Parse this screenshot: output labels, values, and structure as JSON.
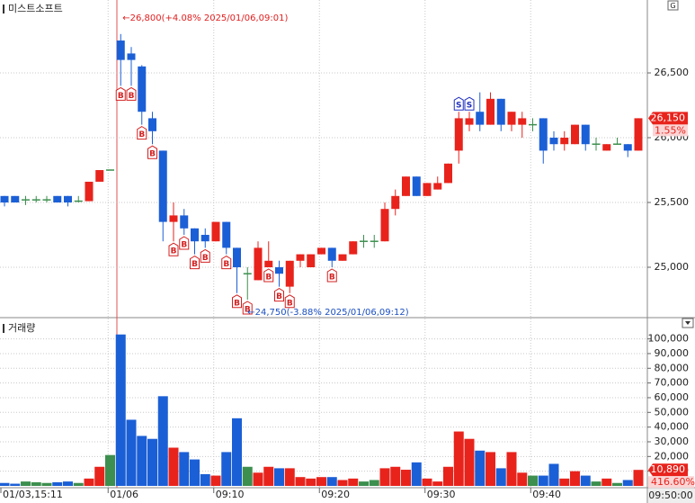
{
  "chart_data": {
    "type": "candlestick",
    "title": "미스트소프트",
    "volume_title": "거래량",
    "corner_button": "G",
    "up_color": "#e8231c",
    "down_color": "#1b5fd6",
    "flat_color": "#3c8f4e",
    "open": [
      25550,
      25550,
      25520,
      25520,
      25520,
      25550,
      25550,
      25510,
      25510,
      25660,
      25750,
      26750,
      26650,
      26550,
      26150,
      25900,
      25350,
      25400,
      25300,
      25250,
      25200,
      25350,
      25150,
      24950,
      24900,
      25000,
      25000,
      24850,
      25050,
      25000,
      25100,
      25150,
      25050,
      25100,
      25200,
      25200,
      25200,
      25450,
      25550,
      25700,
      25550,
      25600,
      25650,
      25900,
      26100,
      26200,
      26100,
      26300,
      26100,
      26100,
      26100,
      26150,
      26000,
      25950,
      25950,
      26100,
      25950,
      25900,
      25950,
      25950,
      25900
    ],
    "high": [
      25550,
      25550,
      25550,
      25550,
      25550,
      25550,
      25550,
      25550,
      25660,
      25750,
      25750,
      26800,
      26700,
      26560,
      26200,
      25900,
      25500,
      25450,
      25300,
      25300,
      25350,
      25350,
      25150,
      25000,
      25200,
      25200,
      25050,
      25050,
      25100,
      25100,
      25150,
      25150,
      25100,
      25200,
      25250,
      25250,
      25500,
      25600,
      25700,
      25700,
      25650,
      25700,
      25800,
      26200,
      26200,
      26350,
      26350,
      26300,
      26200,
      26200,
      26150,
      26150,
      26050,
      26050,
      26100,
      26100,
      26000,
      25950,
      26000,
      25950,
      26150
    ],
    "low": [
      25470,
      25500,
      25480,
      25500,
      25500,
      25500,
      25470,
      25500,
      25510,
      25660,
      25750,
      26400,
      26400,
      26100,
      25950,
      25200,
      25200,
      25250,
      25100,
      25150,
      25200,
      25100,
      24800,
      24750,
      24900,
      25000,
      24850,
      24800,
      25000,
      25000,
      25100,
      25000,
      25050,
      25100,
      25150,
      25150,
      25200,
      25400,
      25550,
      25550,
      25550,
      25600,
      25650,
      25800,
      26050,
      26050,
      26100,
      26050,
      26050,
      26000,
      26050,
      25800,
      25900,
      25900,
      25950,
      25900,
      25900,
      25900,
      25950,
      25850,
      25900
    ],
    "close": [
      25500,
      25500,
      25520,
      25520,
      25520,
      25500,
      25500,
      25510,
      25660,
      25750,
      25750,
      26600,
      26600,
      26200,
      26050,
      25350,
      25400,
      25300,
      25200,
      25200,
      25350,
      25150,
      25000,
      24950,
      25150,
      25050,
      24950,
      25050,
      25100,
      25100,
      25150,
      25050,
      25100,
      25200,
      25200,
      25200,
      25450,
      25550,
      25700,
      25550,
      25650,
      25650,
      25800,
      26150,
      26150,
      26100,
      26300,
      26100,
      26200,
      26150,
      26100,
      25900,
      25950,
      26000,
      26100,
      25950,
      25950,
      25950,
      25950,
      25900,
      26150
    ],
    "volume": [
      2000,
      1500,
      3000,
      2500,
      2000,
      2500,
      3000,
      2000,
      5000,
      13000,
      21000,
      103000,
      45000,
      34000,
      32000,
      61000,
      26000,
      23000,
      18000,
      8000,
      7000,
      23000,
      46000,
      13000,
      9000,
      13000,
      12000,
      12000,
      6000,
      5000,
      6000,
      6000,
      4000,
      5000,
      3000,
      4000,
      12000,
      13000,
      11000,
      16000,
      5000,
      3000,
      13000,
      37000,
      32000,
      24000,
      23000,
      12000,
      23000,
      9000,
      7000,
      7000,
      15000,
      5000,
      10000,
      7000,
      3000,
      5000,
      2000,
      4000,
      10890
    ],
    "ylim": [
      24618,
      27028
    ],
    "yticks": [
      {
        "value": 25000,
        "label": "25,000"
      },
      {
        "value": 25500,
        "label": "25,500"
      },
      {
        "value": 26000,
        "label": "26,000"
      },
      {
        "value": 26500,
        "label": "26,500"
      }
    ],
    "vol_ylim": [
      0,
      112000
    ],
    "vol_yticks": [
      {
        "value": 10000,
        "label": "10,000"
      },
      {
        "value": 20000,
        "label": "20,000"
      },
      {
        "value": 30000,
        "label": "30,000"
      },
      {
        "value": 40000,
        "label": "40,000"
      },
      {
        "value": 50000,
        "label": "50,000"
      },
      {
        "value": 60000,
        "label": "60,000"
      },
      {
        "value": 70000,
        "label": "70,000"
      },
      {
        "value": 80000,
        "label": "80,000"
      },
      {
        "value": 90000,
        "label": "90,000"
      },
      {
        "value": 100000,
        "label": "100,000"
      }
    ],
    "xticks": [
      {
        "value": 0,
        "label": "01/03,15:11"
      },
      {
        "value": 11,
        "label": "01/06"
      },
      {
        "value": 21,
        "label": "09:10"
      },
      {
        "value": 31,
        "label": "09:20"
      },
      {
        "value": 41,
        "label": "09:30"
      },
      {
        "value": 51,
        "label": "09:40"
      }
    ],
    "grid": true,
    "high_annotation": {
      "index": 11,
      "text": "←26,800(+4.08% 2025/01/06,09:01)",
      "color": "#e02020"
    },
    "low_annotation": {
      "index": 23,
      "text": "←24,750(-3.88% 2025/01/06,09:12)",
      "color": "#1b4fc0"
    },
    "last_price": {
      "value": 26150,
      "label": "26,150",
      "change": "1.55%"
    },
    "last_volume": {
      "value": 10890,
      "label": "10,890",
      "change": "416.60%"
    },
    "current_time": "09:50:00",
    "signal_colors": {
      "B": "#d42020",
      "S": "#2030c0"
    },
    "signals": [
      {
        "index": 11,
        "label": "B"
      },
      {
        "index": 12,
        "label": "B"
      },
      {
        "index": 13,
        "label": "B"
      },
      {
        "index": 14,
        "label": "B"
      },
      {
        "index": 16,
        "label": "B"
      },
      {
        "index": 17,
        "label": "B"
      },
      {
        "index": 18,
        "label": "B"
      },
      {
        "index": 19,
        "label": "B"
      },
      {
        "index": 21,
        "label": "B"
      },
      {
        "index": 22,
        "label": "B"
      },
      {
        "index": 23,
        "label": "B"
      },
      {
        "index": 25,
        "label": "B"
      },
      {
        "index": 26,
        "label": "B"
      },
      {
        "index": 27,
        "label": "B"
      },
      {
        "index": 31,
        "label": "B"
      },
      {
        "index": 43,
        "label": "S"
      },
      {
        "index": 44,
        "label": "S"
      }
    ]
  }
}
